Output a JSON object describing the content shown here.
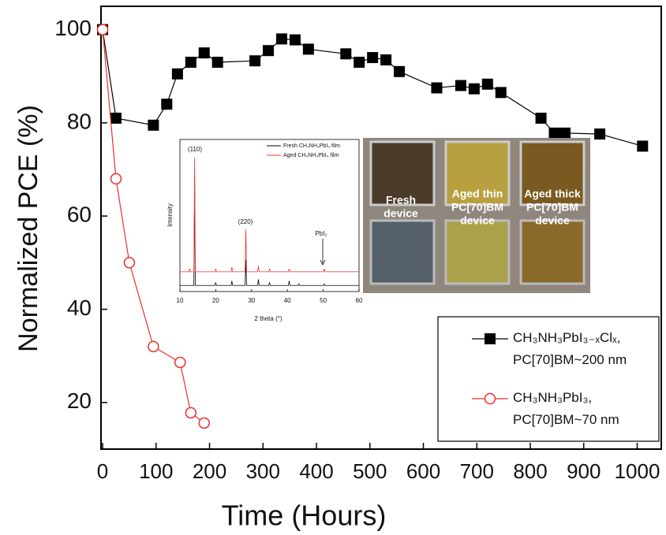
{
  "chart_data": [
    {
      "type": "line",
      "x_label": "Time (Hours)",
      "y_label": "Normalized PCE (%)",
      "xlim": [
        -3,
        1045
      ],
      "ylim": [
        10,
        105
      ],
      "xticks": [
        0,
        100,
        200,
        300,
        400,
        500,
        600,
        700,
        800,
        900,
        1000
      ],
      "yticks": [
        20,
        40,
        60,
        80,
        100
      ],
      "legend": "lower right",
      "series": [
        {
          "name": "CH₃NH₃PbI₃₋ₓClₓ, PC[70]BM~200 nm",
          "color": "#000000",
          "marker": "square",
          "x": [
            0,
            25,
            95,
            120,
            140,
            165,
            190,
            215,
            285,
            310,
            335,
            360,
            385,
            455,
            480,
            505,
            530,
            555,
            625,
            670,
            695,
            720,
            745,
            820,
            845,
            865,
            930,
            1010
          ],
          "values": [
            100,
            81,
            79.5,
            84,
            90.5,
            93,
            95,
            93,
            93.3,
            95.5,
            98,
            97.8,
            95.8,
            94.8,
            93,
            94,
            93.5,
            91,
            87.5,
            88,
            87.3,
            88.3,
            86.5,
            81,
            77.8,
            77.8,
            77.6,
            75
          ]
        },
        {
          "name": "CH₃NH₃PbI₃, PC[70]BM~70 nm",
          "color": "#e8312f",
          "marker": "circle",
          "x": [
            0,
            25,
            50,
            95,
            145,
            165,
            190
          ],
          "values": [
            100,
            68,
            50,
            32,
            28.6,
            17.8,
            15.6
          ]
        }
      ]
    },
    {
      "type": "line",
      "x_label": "2 theta (°)",
      "y_label": "Intensity",
      "xlim": [
        10,
        60
      ],
      "ylim": [
        0,
        100
      ],
      "xticks": [
        10,
        20,
        30,
        40,
        50,
        60
      ],
      "annotations": [
        "(110)",
        "(220)",
        "PbI₂"
      ],
      "series": [
        {
          "name": "Fresh CH₃NH₃PbI₃ film",
          "color": "#000000",
          "x": [
            10,
            13.9,
            14.1,
            14.3,
            19.8,
            20,
            20.2,
            24.3,
            24.5,
            24.7,
            28.2,
            28.4,
            28.6,
            31.7,
            31.9,
            32.1,
            34.8,
            35,
            35.2,
            40.3,
            40.5,
            40.7,
            43,
            43.2,
            43.4,
            50.1,
            50.3,
            50.5,
            60
          ],
          "values": [
            4,
            4,
            70,
            4,
            4,
            6,
            4,
            4,
            7,
            4,
            4,
            21,
            4,
            4,
            8,
            4,
            4,
            6,
            4,
            4,
            7,
            4,
            4,
            5,
            4,
            4,
            5,
            4,
            4
          ]
        },
        {
          "name": "Aged CH₃NH₃PbI₃ film",
          "color": "#e8312f",
          "x": [
            10,
            12.5,
            12.7,
            12.9,
            13.9,
            14.1,
            14.3,
            19.8,
            20,
            20.2,
            24.3,
            24.5,
            24.7,
            28.2,
            28.4,
            28.6,
            31.7,
            31.9,
            32.1,
            34.8,
            35,
            35.2,
            40.3,
            40.5,
            40.7,
            50.1,
            50.3,
            50.5,
            60
          ],
          "values": [
            13,
            13,
            15,
            13,
            13,
            88,
            13,
            13,
            15,
            13,
            13,
            16,
            13,
            13,
            41,
            13,
            13,
            17,
            13,
            13,
            15,
            13,
            13,
            15,
            13,
            13,
            15,
            13,
            13
          ]
        }
      ]
    }
  ],
  "photo": {
    "labels": [
      [
        "Fresh",
        "device"
      ],
      [
        "Aged thin",
        "PC[70]BM",
        "device"
      ],
      [
        "Aged thick",
        "PC[70]BM",
        "device"
      ]
    ]
  }
}
